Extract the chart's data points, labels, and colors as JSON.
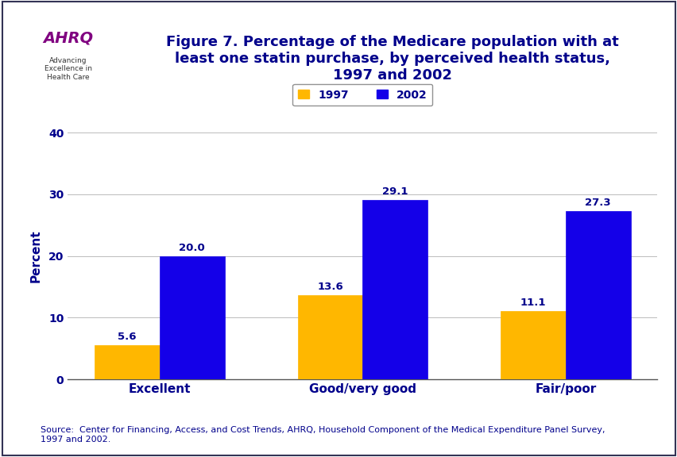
{
  "title_line1": "Figure 7. Percentage of the Medicare population with at",
  "title_line2": "least one statin purchase, by perceived health status,",
  "title_line3": "1997 and 2002",
  "categories": [
    "Excellent",
    "Good/very good",
    "Fair/poor"
  ],
  "values_1997": [
    5.6,
    13.6,
    11.1
  ],
  "values_2002": [
    20.0,
    29.1,
    27.3
  ],
  "color_1997": "#FFB700",
  "color_2002": "#1400E8",
  "ylabel": "Percent",
  "ylim": [
    0,
    40
  ],
  "yticks": [
    0,
    10,
    20,
    30,
    40
  ],
  "legend_labels": [
    "1997",
    "2002"
  ],
  "bar_width": 0.32,
  "source_text": "Source:  Center for Financing, Access, and Cost Trends, AHRQ, Household Component of the Medical Expenditure Panel Survey,\n1997 and 2002.",
  "title_color": "#00008B",
  "axis_label_color": "#00008B",
  "tick_label_color": "#00008B",
  "annotation_color": "#00008B",
  "background_color": "#FFFFFF",
  "header_bg_color": "#FFFFFF",
  "separator_color": "#00008B",
  "source_color": "#00008B",
  "source_fontsize": 8,
  "title_fontsize": 13,
  "ylabel_fontsize": 11,
  "tick_fontsize": 10,
  "annotation_fontsize": 9.5,
  "legend_fontsize": 10,
  "logo_bg": "#2299CC",
  "outer_border_color": "#333355"
}
